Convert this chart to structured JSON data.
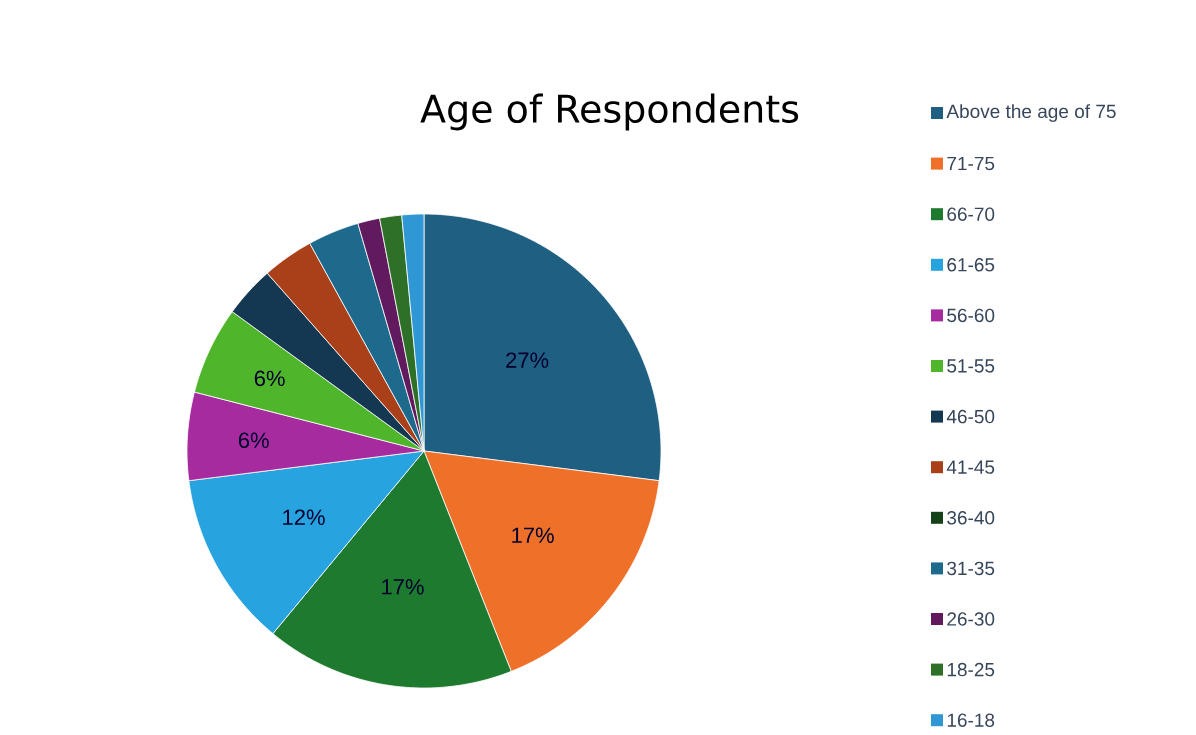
{
  "chart_data": {
    "type": "pie",
    "title": "Age of Respondents",
    "categories": [
      "Above the age of 75",
      "71-75",
      "66-70",
      "61-65",
      "56-60",
      "51-55",
      "46-50",
      "41-45",
      "36-40",
      "31-35",
      "26-30",
      "18-25",
      "16-18"
    ],
    "values": [
      27,
      17,
      17,
      12,
      6,
      6,
      3.5,
      3.5,
      0,
      3.5,
      1.5,
      1.5,
      1.5
    ],
    "colors": [
      "#1f5f82",
      "#ee7029",
      "#1e7a2e",
      "#27a3df",
      "#a62b9e",
      "#4fb52b",
      "#143852",
      "#a9401a",
      "#134219",
      "#1d6a8c",
      "#621a5e",
      "#2f7029",
      "#2f97d3"
    ],
    "value_labels": [
      "27%",
      "17%",
      "17%",
      "12%",
      "6%",
      "6%",
      null,
      null,
      null,
      null,
      null,
      null,
      null
    ],
    "legend": "right"
  }
}
